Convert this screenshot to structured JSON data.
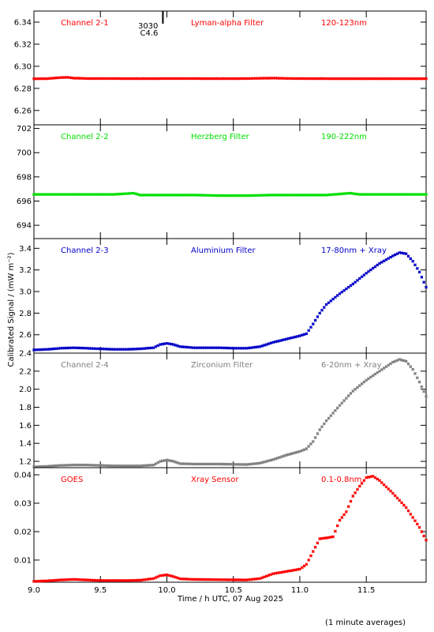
{
  "chart_data": {
    "type": "scatter",
    "xlabel": "Time / h UTC, 07 Aug 2025",
    "ylabel": "Calibrated Signal / (mW m⁻²)",
    "footnote": "(1 minute averages)",
    "x_range": [
      9.0,
      11.95
    ],
    "x_ticks": [
      "9.0",
      "9.5",
      "10.0",
      "10.5",
      "11.0",
      "11.5"
    ],
    "x_tick_values": [
      9.0,
      9.5,
      10.0,
      10.5,
      11.0,
      11.5
    ],
    "marker_annotation": {
      "x": 9.97,
      "labels": [
        "3030",
        "C4.6"
      ]
    },
    "panels": [
      {
        "name": "Channel 2-1",
        "filter": "Lyman-alpha Filter",
        "band": "120-123nm",
        "color": "#ff0000",
        "ylim": [
          6.247,
          6.35
        ],
        "y_ticks": [
          "6.26",
          "6.28",
          "6.30",
          "6.32",
          "6.34"
        ],
        "y_tick_values": [
          6.26,
          6.28,
          6.3,
          6.32,
          6.34
        ],
        "points": [
          [
            9.0,
            6.2887
          ],
          [
            9.1,
            6.2888
          ],
          [
            9.2,
            6.2898
          ],
          [
            9.25,
            6.29
          ],
          [
            9.3,
            6.2893
          ],
          [
            9.4,
            6.2889
          ],
          [
            9.6,
            6.2889
          ],
          [
            9.8,
            6.2888
          ],
          [
            10.0,
            6.2889
          ],
          [
            10.2,
            6.2889
          ],
          [
            10.4,
            6.2888
          ],
          [
            10.6,
            6.2889
          ],
          [
            10.8,
            6.2893
          ],
          [
            10.9,
            6.289
          ],
          [
            11.0,
            6.2889
          ],
          [
            11.2,
            6.2888
          ],
          [
            11.4,
            6.2888
          ],
          [
            11.6,
            6.2888
          ],
          [
            11.8,
            6.2888
          ],
          [
            11.95,
            6.2888
          ]
        ]
      },
      {
        "name": "Channel 2-2",
        "filter": "Herzberg Filter",
        "band": "190-222nm",
        "color": "#00e000",
        "ylim": [
          692.9,
          702.3
        ],
        "y_ticks": [
          "694",
          "696",
          "698",
          "700",
          "702"
        ],
        "y_tick_values": [
          694,
          696,
          698,
          700,
          702
        ],
        "points": [
          [
            9.0,
            696.55
          ],
          [
            9.2,
            696.55
          ],
          [
            9.4,
            696.55
          ],
          [
            9.6,
            696.55
          ],
          [
            9.75,
            696.65
          ],
          [
            9.8,
            696.5
          ],
          [
            10.0,
            696.5
          ],
          [
            10.2,
            696.5
          ],
          [
            10.4,
            696.45
          ],
          [
            10.6,
            696.45
          ],
          [
            10.8,
            696.5
          ],
          [
            11.0,
            696.5
          ],
          [
            11.2,
            696.5
          ],
          [
            11.38,
            696.65
          ],
          [
            11.45,
            696.55
          ],
          [
            11.6,
            696.55
          ],
          [
            11.8,
            696.55
          ],
          [
            11.95,
            696.55
          ]
        ]
      },
      {
        "name": "Channel 2-3",
        "filter": "Aluminium Filter",
        "band": "17-80nm + Xray",
        "color": "#0000c8",
        "ylim": [
          2.43,
          3.49
        ],
        "y_ticks": [
          "2.6",
          "2.8",
          "3.0",
          "3.2",
          "3.4"
        ],
        "y_tick_values": [
          2.6,
          2.8,
          3.0,
          3.2,
          3.4
        ],
        "points": [
          [
            9.0,
            2.46
          ],
          [
            9.1,
            2.465
          ],
          [
            9.2,
            2.475
          ],
          [
            9.3,
            2.48
          ],
          [
            9.4,
            2.475
          ],
          [
            9.5,
            2.47
          ],
          [
            9.6,
            2.465
          ],
          [
            9.7,
            2.465
          ],
          [
            9.8,
            2.47
          ],
          [
            9.9,
            2.48
          ],
          [
            9.95,
            2.51
          ],
          [
            10.0,
            2.52
          ],
          [
            10.05,
            2.51
          ],
          [
            10.1,
            2.49
          ],
          [
            10.2,
            2.48
          ],
          [
            10.3,
            2.48
          ],
          [
            10.4,
            2.48
          ],
          [
            10.5,
            2.475
          ],
          [
            10.6,
            2.475
          ],
          [
            10.7,
            2.49
          ],
          [
            10.8,
            2.53
          ],
          [
            10.9,
            2.56
          ],
          [
            11.0,
            2.59
          ],
          [
            11.05,
            2.61
          ],
          [
            11.1,
            2.7
          ],
          [
            11.15,
            2.8
          ],
          [
            11.2,
            2.88
          ],
          [
            11.3,
            2.98
          ],
          [
            11.4,
            3.07
          ],
          [
            11.5,
            3.17
          ],
          [
            11.6,
            3.26
          ],
          [
            11.7,
            3.33
          ],
          [
            11.75,
            3.36
          ],
          [
            11.8,
            3.35
          ],
          [
            11.85,
            3.28
          ],
          [
            11.9,
            3.18
          ],
          [
            11.95,
            3.04
          ]
        ]
      },
      {
        "name": "Channel 2-4",
        "filter": "Zirconium Filter",
        "band": "6-20nm + Xray",
        "color": "#808080",
        "ylim": [
          1.13,
          2.4
        ],
        "y_ticks": [
          "1.2",
          "1.4",
          "1.6",
          "1.8",
          "2.0",
          "2.2",
          "2.4"
        ],
        "y_tick_values": [
          1.2,
          1.4,
          1.6,
          1.8,
          2.0,
          2.2,
          2.4
        ],
        "points": [
          [
            9.0,
            1.14
          ],
          [
            9.1,
            1.145
          ],
          [
            9.2,
            1.155
          ],
          [
            9.3,
            1.16
          ],
          [
            9.4,
            1.16
          ],
          [
            9.5,
            1.155
          ],
          [
            9.6,
            1.15
          ],
          [
            9.7,
            1.15
          ],
          [
            9.8,
            1.15
          ],
          [
            9.9,
            1.16
          ],
          [
            9.95,
            1.2
          ],
          [
            10.0,
            1.215
          ],
          [
            10.05,
            1.2
          ],
          [
            10.1,
            1.175
          ],
          [
            10.2,
            1.17
          ],
          [
            10.4,
            1.17
          ],
          [
            10.6,
            1.165
          ],
          [
            10.7,
            1.18
          ],
          [
            10.8,
            1.22
          ],
          [
            10.9,
            1.27
          ],
          [
            11.0,
            1.31
          ],
          [
            11.05,
            1.34
          ],
          [
            11.1,
            1.42
          ],
          [
            11.15,
            1.55
          ],
          [
            11.2,
            1.65
          ],
          [
            11.3,
            1.82
          ],
          [
            11.4,
            1.98
          ],
          [
            11.5,
            2.1
          ],
          [
            11.6,
            2.2
          ],
          [
            11.7,
            2.3
          ],
          [
            11.75,
            2.33
          ],
          [
            11.8,
            2.31
          ],
          [
            11.85,
            2.22
          ],
          [
            11.9,
            2.08
          ],
          [
            11.95,
            1.92
          ]
        ]
      },
      {
        "name": "GOES",
        "filter": "Xray Sensor",
        "band": "0.1-0.8nm",
        "color": "#ff0000",
        "ylim": [
          0.0022,
          0.0425
        ],
        "y_ticks": [
          "0.01",
          "0.02",
          "0.03",
          "0.04"
        ],
        "y_tick_values": [
          0.01,
          0.02,
          0.03,
          0.04
        ],
        "points": [
          [
            9.0,
            0.0025
          ],
          [
            9.1,
            0.0027
          ],
          [
            9.2,
            0.003
          ],
          [
            9.3,
            0.0032
          ],
          [
            9.4,
            0.003
          ],
          [
            9.5,
            0.0028
          ],
          [
            9.6,
            0.0028
          ],
          [
            9.7,
            0.0028
          ],
          [
            9.8,
            0.0029
          ],
          [
            9.9,
            0.0035
          ],
          [
            9.95,
            0.0045
          ],
          [
            10.0,
            0.0048
          ],
          [
            10.05,
            0.0042
          ],
          [
            10.1,
            0.0034
          ],
          [
            10.2,
            0.0032
          ],
          [
            10.4,
            0.0031
          ],
          [
            10.6,
            0.003
          ],
          [
            10.7,
            0.0035
          ],
          [
            10.8,
            0.0052
          ],
          [
            10.9,
            0.006
          ],
          [
            11.0,
            0.0068
          ],
          [
            11.05,
            0.0085
          ],
          [
            11.1,
            0.013
          ],
          [
            11.15,
            0.0175
          ],
          [
            11.2,
            0.0178
          ],
          [
            11.25,
            0.0182
          ],
          [
            11.3,
            0.024
          ],
          [
            11.35,
            0.027
          ],
          [
            11.4,
            0.0325
          ],
          [
            11.45,
            0.036
          ],
          [
            11.5,
            0.039
          ],
          [
            11.55,
            0.0395
          ],
          [
            11.6,
            0.038
          ],
          [
            11.7,
            0.0335
          ],
          [
            11.8,
            0.0285
          ],
          [
            11.9,
            0.0215
          ],
          [
            11.95,
            0.017
          ]
        ]
      }
    ]
  }
}
